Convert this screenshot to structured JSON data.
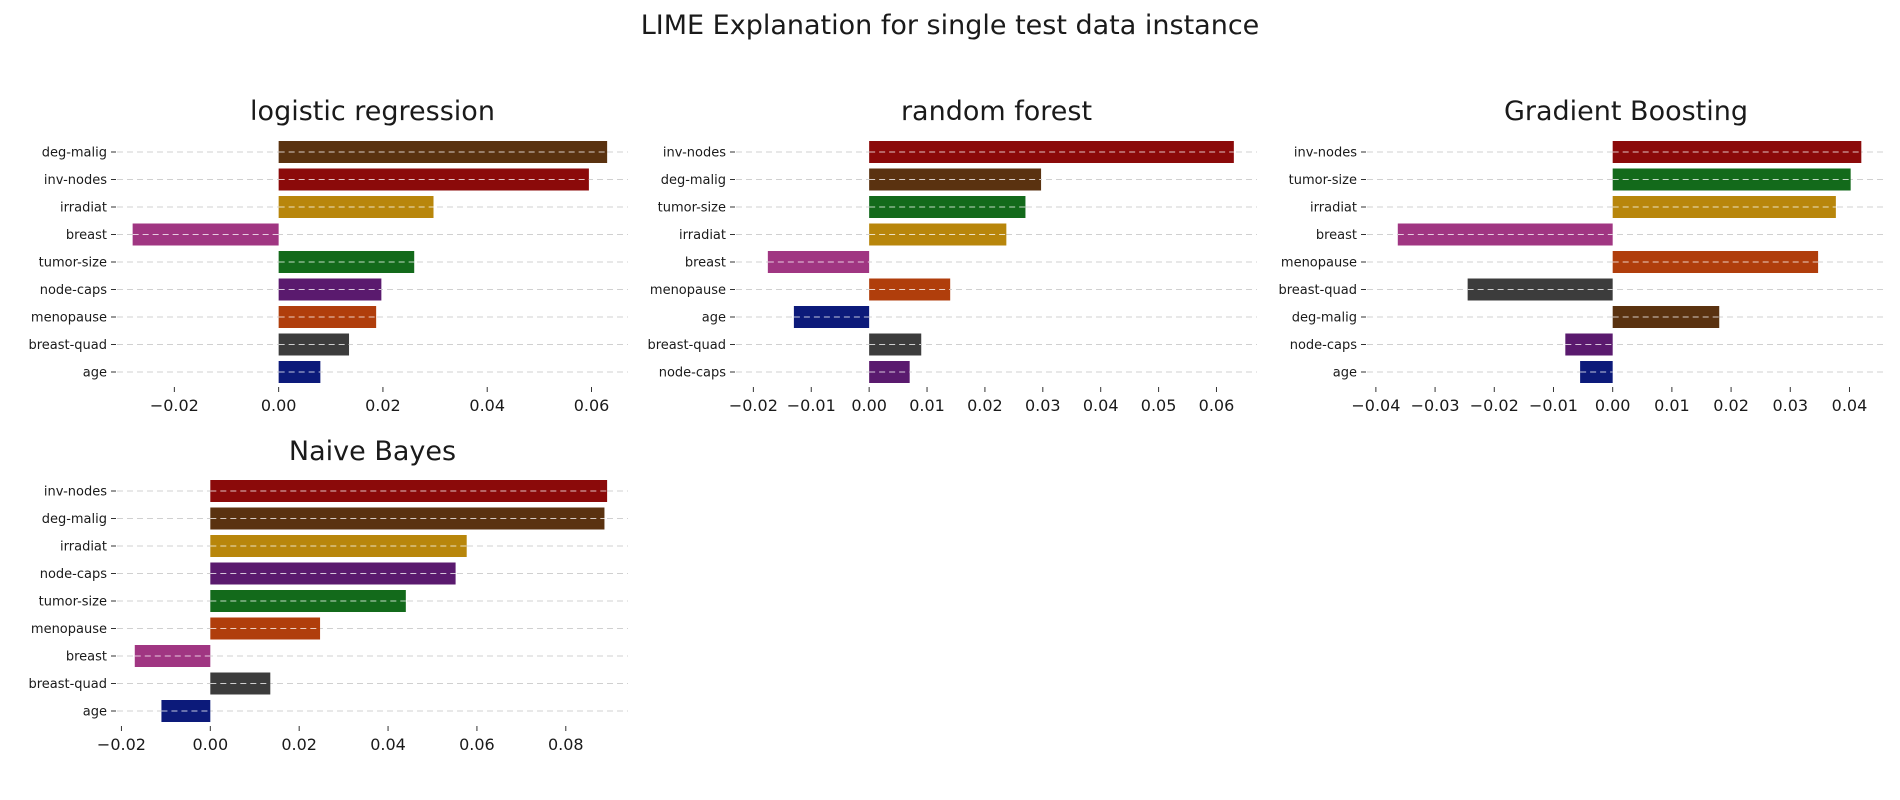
{
  "title": "LIME Explanation for single test data instance",
  "colors": {
    "deg-malig": "#5a3210",
    "inv-nodes": "#8b0a0a",
    "irradiat": "#b8860b",
    "breast": "#a03682",
    "tumor-size": "#136a1b",
    "node-caps": "#5a1a6e",
    "menopause": "#b03e0c",
    "breast-quad": "#3c3c3c",
    "age": "#0c1a7a"
  },
  "chart_data": [
    {
      "type": "bar",
      "orientation": "horizontal",
      "title": "logistic regression",
      "categories": [
        "deg-malig",
        "inv-nodes",
        "irradiat",
        "breast",
        "tumor-size",
        "node-caps",
        "menopause",
        "breast-quad",
        "age"
      ],
      "values": [
        0.063,
        0.0595,
        0.0297,
        -0.028,
        0.026,
        0.0197,
        0.0187,
        0.0135,
        0.008
      ],
      "xticks": [
        -0.02,
        0.0,
        0.02,
        0.04,
        0.06
      ],
      "xtick_labels": [
        "−0.02",
        "0.00",
        "0.02",
        "0.04",
        "0.06"
      ],
      "xlim": [
        -0.031,
        0.067
      ],
      "grid": "horizontal-dashed"
    },
    {
      "type": "bar",
      "orientation": "horizontal",
      "title": "random forest",
      "categories": [
        "inv-nodes",
        "deg-malig",
        "tumor-size",
        "irradiat",
        "breast",
        "menopause",
        "age",
        "breast-quad",
        "node-caps"
      ],
      "values": [
        0.063,
        0.0297,
        0.027,
        0.0237,
        -0.0175,
        0.014,
        -0.013,
        0.009,
        0.007
      ],
      "xticks": [
        -0.02,
        -0.01,
        0.0,
        0.01,
        0.02,
        0.03,
        0.04,
        0.05,
        0.06
      ],
      "xtick_labels": [
        "−0.02",
        "−0.01",
        "0.00",
        "0.01",
        "0.02",
        "0.03",
        "0.04",
        "0.05",
        "0.06"
      ],
      "xlim": [
        -0.023,
        0.067
      ],
      "grid": "horizontal-dashed"
    },
    {
      "type": "bar",
      "orientation": "horizontal",
      "title": "Gradient Boosting",
      "categories": [
        "inv-nodes",
        "tumor-size",
        "irradiat",
        "breast",
        "menopause",
        "breast-quad",
        "deg-malig",
        "node-caps",
        "age"
      ],
      "values": [
        0.042,
        0.0402,
        0.0377,
        -0.0363,
        0.0347,
        -0.0245,
        0.018,
        -0.008,
        -0.0055
      ],
      "xticks": [
        -0.04,
        -0.03,
        -0.02,
        -0.01,
        0.0,
        0.01,
        0.02,
        0.03,
        0.04
      ],
      "xtick_labels": [
        "−0.04",
        "−0.03",
        "−0.02",
        "−0.01",
        "0.00",
        "0.01",
        "0.02",
        "0.03",
        "0.04"
      ],
      "xlim": [
        -0.0415,
        0.046
      ],
      "grid": "horizontal-dashed"
    },
    {
      "type": "bar",
      "orientation": "horizontal",
      "title": "Naive Bayes",
      "categories": [
        "inv-nodes",
        "deg-malig",
        "irradiat",
        "node-caps",
        "tumor-size",
        "menopause",
        "breast",
        "breast-quad",
        "age"
      ],
      "values": [
        0.0893,
        0.0887,
        0.0577,
        0.0552,
        0.044,
        0.0247,
        -0.017,
        0.0135,
        -0.011
      ],
      "xticks": [
        -0.02,
        0.0,
        0.02,
        0.04,
        0.06,
        0.08
      ],
      "xtick_labels": [
        "−0.02",
        "0.00",
        "0.02",
        "0.04",
        "0.06",
        "0.08"
      ],
      "xlim": [
        -0.021,
        0.094
      ],
      "grid": "horizontal-dashed"
    }
  ]
}
